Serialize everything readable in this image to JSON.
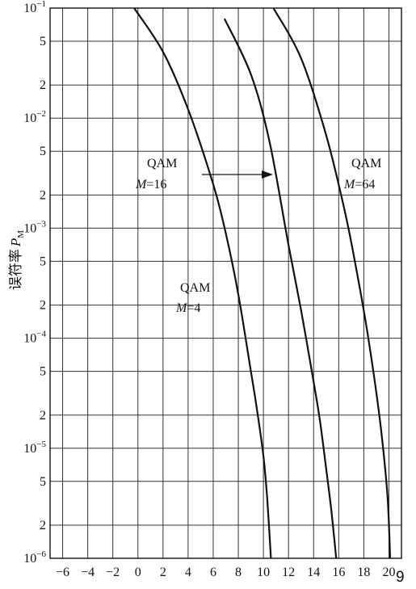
{
  "chart_data": {
    "type": "line",
    "title": "",
    "xlabel": "",
    "ylabel": {
      "main": "误符率",
      "symbol": "P",
      "subscript": "M"
    },
    "log_y": true,
    "grid": true,
    "xlim": [
      -7,
      21
    ],
    "ylim": [
      1e-06,
      0.1
    ],
    "x_ticks": [
      -6,
      -4,
      -2,
      0,
      2,
      4,
      6,
      8,
      10,
      12,
      14,
      16,
      18,
      20
    ],
    "x_tick_labels": [
      "−6",
      "−4",
      "−2",
      "0",
      "2",
      "4",
      "6",
      "8",
      "10",
      "12",
      "14",
      "16",
      "18",
      "20"
    ],
    "y_ticks": [
      {
        "value": 0.1,
        "base": "10",
        "exp": "−1"
      },
      {
        "value": 0.05,
        "label": "5"
      },
      {
        "value": 0.02,
        "label": "2"
      },
      {
        "value": 0.01,
        "base": "10",
        "exp": "−2"
      },
      {
        "value": 0.005,
        "label": "5"
      },
      {
        "value": 0.002,
        "label": "2"
      },
      {
        "value": 0.001,
        "base": "10",
        "exp": "−3"
      },
      {
        "value": 0.0005,
        "label": "5"
      },
      {
        "value": 0.0002,
        "label": "2"
      },
      {
        "value": 0.0001,
        "base": "10",
        "exp": "−4"
      },
      {
        "value": 5e-05,
        "label": "5"
      },
      {
        "value": 2e-05,
        "label": "2"
      },
      {
        "value": 1e-05,
        "base": "10",
        "exp": "−5"
      },
      {
        "value": 5e-06,
        "label": "5"
      },
      {
        "value": 2e-06,
        "label": "2"
      },
      {
        "value": 1e-06,
        "base": "10",
        "exp": "−6"
      }
    ],
    "series": [
      {
        "x": [
          -0.3,
          2.0,
          4.0,
          6.0,
          7.0,
          8.0,
          9.0,
          9.5,
          10.0,
          10.3,
          10.6
        ],
        "y": [
          0.1,
          0.04,
          0.012,
          0.0025,
          0.0009,
          0.00025,
          5e-05,
          2.2e-05,
          8.5e-06,
          3.5e-06,
          1e-06
        ]
      },
      {
        "x": [
          6.9,
          9.0,
          10.5,
          12.0,
          13.0,
          14.0,
          14.5,
          15.0,
          15.4,
          15.8
        ],
        "y": [
          0.08,
          0.025,
          0.006,
          0.0007,
          0.00018,
          4e-05,
          1.8e-05,
          6.5e-06,
          2.8e-06,
          1e-06
        ]
      },
      {
        "x": [
          10.8,
          13.0,
          15.0,
          16.5,
          17.5,
          18.3,
          19.0,
          19.5,
          19.9,
          20.1
        ],
        "y": [
          0.1,
          0.035,
          0.007,
          0.0014,
          0.00037,
          0.00011,
          3.2e-05,
          1.1e-05,
          3.5e-06,
          1e-06
        ]
      }
    ],
    "annotations": [
      {
        "name": "m16",
        "line1": "QAM",
        "var": "M",
        "eq": "=16"
      },
      {
        "name": "m64",
        "line1": "QAM",
        "var": "M",
        "eq": "=64"
      },
      {
        "name": "m4",
        "line1": "QAM",
        "var": "M",
        "eq": "=4"
      }
    ]
  },
  "page_number": "9"
}
